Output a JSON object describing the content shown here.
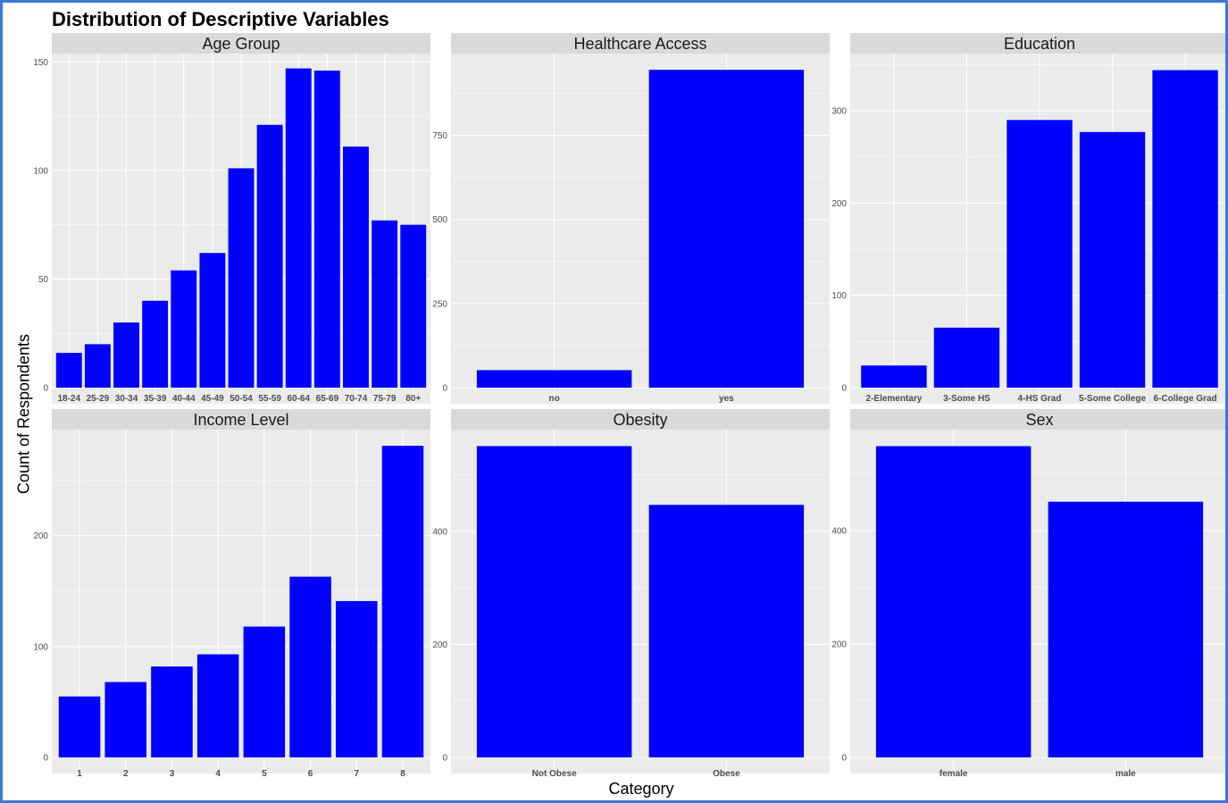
{
  "title": "Distribution of Descriptive Variables",
  "ylabel": "Count of Respondents",
  "xlabel": "Category",
  "colors": {
    "bar": "#0000ff",
    "panel": "#ebebeb",
    "strip": "#d9d9d9",
    "grid": "#ffffff"
  },
  "chart_data": [
    {
      "type": "bar",
      "title": "Age Group",
      "categories": [
        "18-24",
        "25-29",
        "30-34",
        "35-39",
        "40-44",
        "45-49",
        "50-54",
        "55-59",
        "60-64",
        "65-69",
        "70-74",
        "75-79",
        "80+"
      ],
      "values": [
        16,
        20,
        30,
        40,
        54,
        62,
        101,
        121,
        147,
        146,
        111,
        77,
        75
      ],
      "yticks": [
        0,
        50,
        100,
        150
      ],
      "ylim": [
        0,
        153
      ]
    },
    {
      "type": "bar",
      "title": "Healthcare Access",
      "categories": [
        "no",
        "yes"
      ],
      "values": [
        52,
        945
      ],
      "yticks": [
        0,
        250,
        500,
        750
      ],
      "ylim": [
        0,
        988
      ]
    },
    {
      "type": "bar",
      "title": "Education",
      "categories": [
        "2-Elementary",
        "3-Some HS",
        "4-HS Grad",
        "5-Some College",
        "6-College Grad"
      ],
      "values": [
        24,
        65,
        290,
        277,
        344
      ],
      "yticks": [
        0,
        100,
        200,
        300
      ],
      "ylim": [
        0,
        360
      ]
    },
    {
      "type": "bar",
      "title": "Income Level",
      "categories": [
        "1",
        "2",
        "3",
        "4",
        "5",
        "6",
        "7",
        "8"
      ],
      "values": [
        55,
        68,
        82,
        93,
        118,
        163,
        141,
        281
      ],
      "yticks": [
        0,
        100,
        200
      ],
      "ylim": [
        0,
        294
      ]
    },
    {
      "type": "bar",
      "title": "Obesity",
      "categories": [
        "Not Obese",
        "Obese"
      ],
      "values": [
        551,
        447
      ],
      "yticks": [
        0,
        200,
        400
      ],
      "ylim": [
        0,
        577
      ]
    },
    {
      "type": "bar",
      "title": "Sex",
      "categories": [
        "female",
        "male"
      ],
      "values": [
        549,
        451
      ],
      "yticks": [
        0,
        200,
        400
      ],
      "ylim": [
        0,
        575
      ]
    }
  ]
}
